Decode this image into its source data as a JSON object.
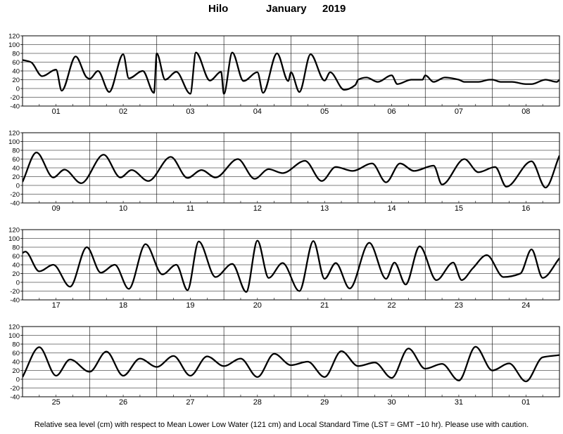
{
  "title": {
    "station": "Hilo",
    "month": "January",
    "year": "2019"
  },
  "footnote": "Relative sea level (cm) with respect to Mean Lower Low Water (121 cm) and Local Standard Time (LST = GMT −10 hr). Please use with caution.",
  "chart_data": [
    {
      "type": "line",
      "ylim": [
        -40,
        120
      ],
      "yticks": [
        -40,
        -20,
        0,
        20,
        40,
        60,
        80,
        100,
        120
      ],
      "grid": true,
      "categories": [
        "01",
        "02",
        "03",
        "04",
        "05",
        "06",
        "07",
        "08"
      ],
      "series": [
        {
          "x_hours": [
            0,
            3,
            7,
            12,
            14,
            19,
            23,
            0,
            3,
            7,
            12,
            14,
            19,
            23,
            0,
            3,
            7,
            12,
            14,
            19,
            23,
            0,
            3,
            7,
            12,
            14,
            19,
            23,
            0,
            3,
            7,
            12,
            14,
            19,
            23,
            0,
            3,
            7,
            12,
            14,
            19,
            23,
            0,
            3,
            7,
            12,
            14,
            19,
            23,
            0,
            3,
            7,
            12,
            14,
            19,
            23,
            0
          ],
          "x": [
            0,
            3,
            7,
            12,
            14,
            19,
            23,
            24,
            27,
            31,
            36,
            38,
            43,
            47,
            48,
            51,
            55,
            60,
            62,
            67,
            71,
            72,
            75,
            79,
            84,
            86,
            91,
            95,
            96,
            99,
            103,
            108,
            110,
            115,
            119,
            120,
            123,
            127,
            132,
            134,
            139,
            143,
            144,
            147,
            151,
            156,
            158,
            163,
            167,
            168,
            171,
            175,
            180,
            182,
            187,
            191,
            192
          ],
          "values": [
            65,
            60,
            28,
            43,
            -5,
            73,
            25,
            22,
            40,
            -8,
            78,
            23,
            40,
            -10,
            80,
            20,
            38,
            -12,
            82,
            18,
            38,
            -12,
            82,
            17,
            37,
            -10,
            80,
            17,
            37,
            -8,
            78,
            18,
            37,
            -3,
            8,
            20,
            25,
            15,
            30,
            10,
            20,
            20,
            30,
            15,
            25,
            20,
            15,
            15,
            20,
            20,
            15,
            15,
            10,
            10,
            20,
            15,
            20
          ]
        }
      ]
    },
    {
      "type": "line",
      "ylim": [
        -40,
        120
      ],
      "yticks": [
        -40,
        -20,
        0,
        20,
        40,
        60,
        80,
        100,
        120
      ],
      "grid": true,
      "categories": [
        "09",
        "10",
        "11",
        "12",
        "13",
        "14",
        "15",
        "16"
      ],
      "series": [
        {
          "x": [
            0,
            5,
            11,
            15,
            21,
            29,
            35,
            39,
            45,
            53,
            59,
            64,
            69,
            77,
            83,
            88,
            93,
            101,
            107,
            112,
            118,
            125,
            130,
            135,
            140,
            147,
            150,
            158,
            163,
            169,
            173,
            182,
            187,
            192
          ],
          "values": [
            8,
            75,
            18,
            36,
            5,
            70,
            18,
            35,
            10,
            65,
            17,
            35,
            18,
            60,
            15,
            37,
            28,
            56,
            10,
            42,
            33,
            50,
            7,
            50,
            33,
            45,
            2,
            60,
            30,
            42,
            -3,
            55,
            -5,
            68
          ]
        }
      ]
    },
    {
      "type": "line",
      "ylim": [
        -40,
        120
      ],
      "yticks": [
        -40,
        -20,
        0,
        20,
        40,
        60,
        80,
        100,
        120
      ],
      "grid": true,
      "categories": [
        "17",
        "18",
        "19",
        "20",
        "21",
        "22",
        "23",
        "24"
      ],
      "series": [
        {
          "x": [
            0,
            1,
            6,
            11,
            17,
            23,
            28,
            33,
            38,
            44,
            50,
            55,
            59,
            63,
            69,
            75,
            80,
            84,
            88,
            93,
            99,
            104,
            108,
            112,
            117,
            124,
            130,
            133,
            137,
            142,
            148,
            154,
            157,
            161,
            166,
            172,
            178,
            182,
            186,
            192
          ],
          "values": [
            67,
            70,
            25,
            40,
            -10,
            80,
            22,
            40,
            -15,
            87,
            18,
            40,
            -18,
            93,
            12,
            42,
            -22,
            95,
            10,
            44,
            -20,
            94,
            8,
            44,
            -14,
            90,
            8,
            45,
            -5,
            82,
            5,
            45,
            5,
            32,
            62,
            12,
            20,
            75,
            10,
            55
          ]
        }
      ]
    },
    {
      "type": "line",
      "ylim": [
        -40,
        120
      ],
      "yticks": [
        -40,
        -20,
        0,
        20,
        40,
        60,
        80,
        100,
        120
      ],
      "grid": true,
      "categories": [
        "25",
        "26",
        "27",
        "28",
        "29",
        "30",
        "31",
        "01"
      ],
      "series": [
        {
          "x": [
            0,
            6,
            12,
            17,
            24,
            30,
            36,
            42,
            48,
            54,
            60,
            66,
            72,
            78,
            84,
            90,
            96,
            102,
            108,
            114,
            120,
            126,
            132,
            138,
            144,
            150,
            156,
            162,
            168,
            174,
            180,
            186,
            192
          ],
          "values": [
            5,
            73,
            8,
            45,
            17,
            63,
            8,
            47,
            28,
            53,
            8,
            52,
            30,
            47,
            5,
            58,
            32,
            40,
            5,
            64,
            30,
            38,
            3,
            70,
            24,
            35,
            -3,
            74,
            20,
            36,
            -5,
            50,
            55
          ]
        }
      ]
    }
  ]
}
